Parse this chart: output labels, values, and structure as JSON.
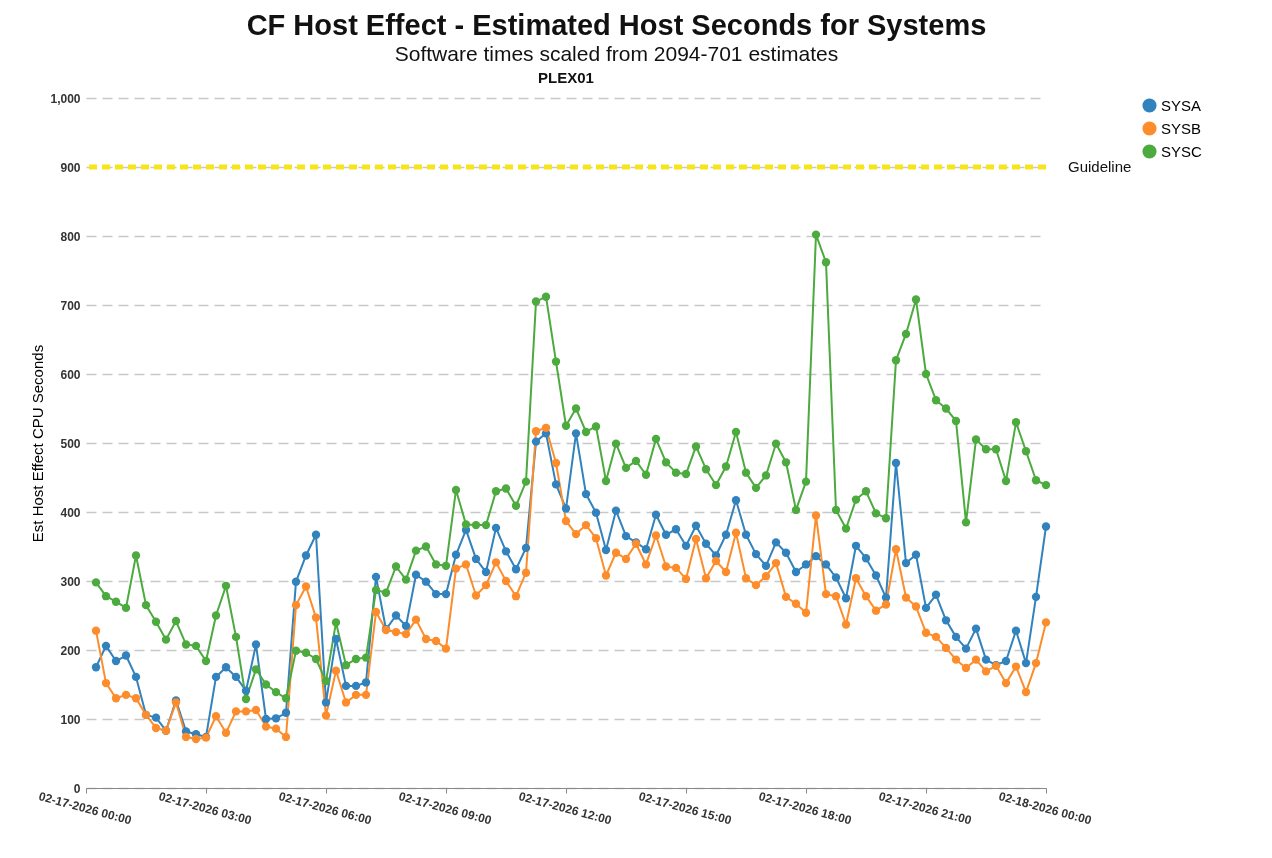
{
  "chart_data": {
    "type": "line",
    "title": "CF Host Effect - Estimated Host Seconds for Systems",
    "subtitle": "Software times scaled from 2094-701 estimates",
    "annotations": [
      "PLEX01"
    ],
    "ylabel": "Est Host Effect CPU Seconds",
    "x": [
      "2026-02-17T00:15",
      "2026-02-17T00:30",
      "2026-02-17T00:45",
      "2026-02-17T01:00",
      "2026-02-17T01:15",
      "2026-02-17T01:30",
      "2026-02-17T01:45",
      "2026-02-17T02:00",
      "2026-02-17T02:15",
      "2026-02-17T02:30",
      "2026-02-17T02:45",
      "2026-02-17T03:00",
      "2026-02-17T03:15",
      "2026-02-17T03:30",
      "2026-02-17T03:45",
      "2026-02-17T04:00",
      "2026-02-17T04:15",
      "2026-02-17T04:30",
      "2026-02-17T04:45",
      "2026-02-17T05:00",
      "2026-02-17T05:15",
      "2026-02-17T05:30",
      "2026-02-17T05:45",
      "2026-02-17T06:00",
      "2026-02-17T06:15",
      "2026-02-17T06:30",
      "2026-02-17T06:45",
      "2026-02-17T07:00",
      "2026-02-17T07:15",
      "2026-02-17T07:30",
      "2026-02-17T07:45",
      "2026-02-17T08:00",
      "2026-02-17T08:15",
      "2026-02-17T08:30",
      "2026-02-17T08:45",
      "2026-02-17T09:00",
      "2026-02-17T09:15",
      "2026-02-17T09:30",
      "2026-02-17T09:45",
      "2026-02-17T10:00",
      "2026-02-17T10:15",
      "2026-02-17T10:30",
      "2026-02-17T10:45",
      "2026-02-17T11:00",
      "2026-02-17T11:15",
      "2026-02-17T11:30",
      "2026-02-17T11:45",
      "2026-02-17T12:00",
      "2026-02-17T12:15",
      "2026-02-17T12:30",
      "2026-02-17T12:45",
      "2026-02-17T13:00",
      "2026-02-17T13:15",
      "2026-02-17T13:30",
      "2026-02-17T13:45",
      "2026-02-17T14:00",
      "2026-02-17T14:15",
      "2026-02-17T14:30",
      "2026-02-17T14:45",
      "2026-02-17T15:00",
      "2026-02-17T15:15",
      "2026-02-17T15:30",
      "2026-02-17T15:45",
      "2026-02-17T16:00",
      "2026-02-17T16:15",
      "2026-02-17T16:30",
      "2026-02-17T16:45",
      "2026-02-17T17:00",
      "2026-02-17T17:15",
      "2026-02-17T17:30",
      "2026-02-17T17:45",
      "2026-02-17T18:00",
      "2026-02-17T18:15",
      "2026-02-17T18:30",
      "2026-02-17T18:45",
      "2026-02-17T19:00",
      "2026-02-17T19:15",
      "2026-02-17T19:30",
      "2026-02-17T19:45",
      "2026-02-17T20:00",
      "2026-02-17T20:15",
      "2026-02-17T20:30",
      "2026-02-17T20:45",
      "2026-02-17T21:00",
      "2026-02-17T21:15",
      "2026-02-17T21:30",
      "2026-02-17T21:45",
      "2026-02-17T22:00",
      "2026-02-17T22:15",
      "2026-02-17T22:30",
      "2026-02-17T22:45",
      "2026-02-17T23:00",
      "2026-02-17T23:15",
      "2026-02-17T23:30",
      "2026-02-17T23:45",
      "2026-02-18T00:00"
    ],
    "series": [
      {
        "name": "SYSA",
        "color": "#3182bd",
        "values": [
          175,
          206,
          184,
          192,
          161,
          106,
          102,
          83,
          127,
          82,
          78,
          74,
          161,
          175,
          161,
          141,
          208,
          100,
          101,
          109,
          299,
          337,
          367,
          124,
          216,
          148,
          148,
          153,
          306,
          230,
          250,
          235,
          309,
          299,
          281,
          281,
          338,
          374,
          332,
          313,
          377,
          343,
          317,
          348,
          502,
          514,
          440,
          405,
          514,
          426,
          399,
          345,
          402,
          365,
          356,
          346,
          396,
          367,
          375,
          351,
          380,
          354,
          337,
          367,
          417,
          367,
          339,
          322,
          356,
          341,
          313,
          324,
          336,
          324,
          305,
          275,
          351,
          333,
          308,
          276,
          471,
          326,
          338,
          261,
          280,
          243,
          219,
          202,
          231,
          186,
          178,
          184,
          228,
          181,
          277,
          379
        ]
      },
      {
        "name": "SYSB",
        "color": "#fd8d2c",
        "values": [
          228,
          152,
          130,
          135,
          130,
          106,
          87,
          83,
          124,
          74,
          71,
          73,
          104,
          80,
          111,
          111,
          113,
          89,
          86,
          74,
          265,
          292,
          247,
          105,
          170,
          124,
          135,
          135,
          255,
          229,
          226,
          223,
          244,
          216,
          213,
          202,
          318,
          324,
          279,
          294,
          327,
          300,
          278,
          312,
          517,
          522,
          471,
          387,
          368,
          381,
          362,
          308,
          341,
          332,
          354,
          324,
          366,
          321,
          319,
          303,
          361,
          304,
          329,
          313,
          370,
          304,
          294,
          307,
          326,
          277,
          267,
          254,
          395,
          281,
          278,
          237,
          304,
          278,
          257,
          266,
          346,
          276,
          263,
          225,
          219,
          203,
          186,
          174,
          186,
          169,
          177,
          152,
          176,
          139,
          181,
          240
        ]
      },
      {
        "name": "SYSC",
        "color": "#4caa3f",
        "values": [
          298,
          278,
          270,
          261,
          337,
          265,
          241,
          215,
          242,
          208,
          206,
          184,
          250,
          293,
          219,
          129,
          172,
          150,
          139,
          130,
          199,
          196,
          187,
          155,
          240,
          178,
          187,
          189,
          287,
          283,
          321,
          302,
          344,
          350,
          324,
          322,
          432,
          382,
          381,
          381,
          430,
          434,
          409,
          444,
          705,
          712,
          618,
          525,
          550,
          516,
          524,
          445,
          499,
          464,
          474,
          454,
          506,
          472,
          457,
          455,
          495,
          462,
          439,
          466,
          516,
          457,
          435,
          453,
          499,
          472,
          403,
          444,
          802,
          762,
          403,
          376,
          418,
          430,
          398,
          391,
          620,
          658,
          708,
          600,
          562,
          550,
          532,
          385,
          505,
          491,
          491,
          445,
          530,
          488,
          446,
          439
        ]
      }
    ],
    "xlim": [
      "2026-02-17T00:00",
      "2026-02-18T00:00"
    ],
    "xticks": [
      {
        "value": "2026-02-17T00:00",
        "label": "02-17-2026 00:00"
      },
      {
        "value": "2026-02-17T03:00",
        "label": "02-17-2026 03:00"
      },
      {
        "value": "2026-02-17T06:00",
        "label": "02-17-2026 06:00"
      },
      {
        "value": "2026-02-17T09:00",
        "label": "02-17-2026 09:00"
      },
      {
        "value": "2026-02-17T12:00",
        "label": "02-17-2026 12:00"
      },
      {
        "value": "2026-02-17T15:00",
        "label": "02-17-2026 15:00"
      },
      {
        "value": "2026-02-17T18:00",
        "label": "02-17-2026 18:00"
      },
      {
        "value": "2026-02-17T21:00",
        "label": "02-17-2026 21:00"
      },
      {
        "value": "2026-02-18T00:00",
        "label": "02-18-2026 00:00"
      }
    ],
    "ylim": [
      0,
      1000
    ],
    "yticks": [
      0,
      100,
      200,
      300,
      400,
      500,
      600,
      700,
      800,
      900,
      {
        "value": 1000,
        "label": "1,000"
      }
    ],
    "ref_lines": [
      {
        "axis": "y",
        "value": 900,
        "label": "Guideline",
        "color": "#f7e51a",
        "line_style": "dashed"
      }
    ],
    "grid": "y",
    "legend": "top right",
    "marker": "circle",
    "line_style": "solid"
  }
}
